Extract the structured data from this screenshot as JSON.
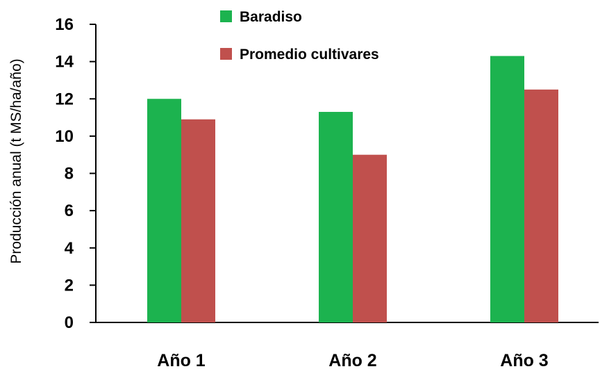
{
  "chart_data": {
    "type": "bar",
    "categories": [
      "Año 1",
      "Año 2",
      "Año 3"
    ],
    "series": [
      {
        "name": "Baradiso",
        "values": [
          12.0,
          11.3,
          14.3
        ],
        "color": "#1cb34f"
      },
      {
        "name": "Promedio cultivares",
        "values": [
          10.9,
          9.0,
          12.5
        ],
        "color": "#c0504d"
      }
    ],
    "ylabel": "Producción anual (t MS/ha/año)",
    "ylim": [
      0,
      16
    ],
    "yticks": [
      0,
      2,
      4,
      6,
      8,
      10,
      12,
      14,
      16
    ],
    "legend": "top-center",
    "grid": false
  }
}
